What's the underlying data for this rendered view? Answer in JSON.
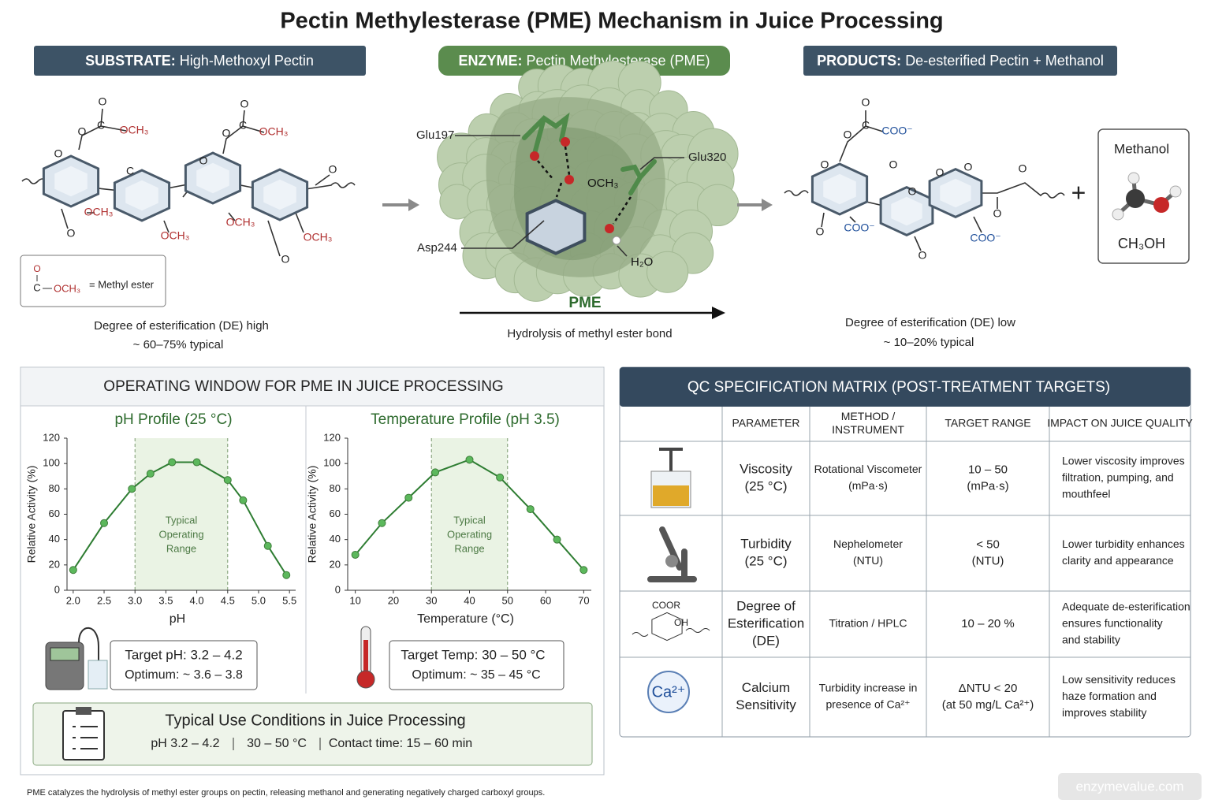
{
  "title": "Pectin Methylesterase (PME) Mechanism in Juice Processing",
  "substrate": {
    "header_label": "SUBSTRATE:",
    "header_text": "High-Methoxyl Pectin",
    "structure_labels": [
      "O",
      "C",
      "OCH₃",
      "O",
      "O",
      "C",
      "OCH₃",
      "O",
      "O",
      "OCH₃",
      "O",
      "OCH₃",
      "OCH₃",
      "OCH₃",
      "O",
      "O",
      "C",
      "O"
    ],
    "key_formula": [
      "O",
      "C",
      "OCH₃"
    ],
    "key_text": "= Methyl ester",
    "de_text": "Degree of esterification (DE) high",
    "de_range": "~ 60–75% typical"
  },
  "enzyme": {
    "header_label": "ENZYME:",
    "header_text": "Pectin Methylesterase (PME)",
    "residues": [
      "Glu197",
      "Glu320",
      "Asp244"
    ],
    "water": "H₂O",
    "leaving_group": "OCH₃",
    "arrow_label": "PME",
    "caption": "Hydrolysis of methyl ester bond"
  },
  "products": {
    "header_label": "PRODUCTS:",
    "header_text": "De-esterified Pectin +  Methanol",
    "structure_labels": [
      "O",
      "C",
      "COO⁻",
      "O",
      "O",
      "O",
      "O",
      "O",
      "O",
      "O",
      "COO⁻",
      "O",
      "COO⁻",
      "O",
      "O"
    ],
    "plus": "+",
    "methanol_title": "Methanol",
    "methanol_formula": "CH₃OH",
    "de_text": "Degree of esterification (DE) low",
    "de_range": "~ 10–20% typical"
  },
  "operating_window": {
    "title": "OPERATING WINDOW FOR PME IN JUICE PROCESSING",
    "ph_box": [
      "Target pH: 3.2 – 4.2",
      "Optimum: ~ 3.6 – 3.8"
    ],
    "temp_box": [
      "Target Temp: 30 – 50 °C",
      "Optimum: ~ 35 – 45 °C"
    ],
    "use_title": "Typical Use Conditions in Juice Processing",
    "use_conditions": [
      "pH 3.2 – 4.2",
      "30 – 50 °C",
      "Contact time: 15 – 60 min"
    ]
  },
  "chart_data": [
    {
      "type": "line",
      "title": "pH Profile (25 °C)",
      "xlabel": "pH",
      "ylabel": "Relative Activity (%)",
      "x": [
        2.0,
        2.5,
        2.95,
        3.25,
        3.6,
        4.0,
        4.5,
        4.75,
        5.15,
        5.45
      ],
      "values": [
        16,
        53,
        80,
        92,
        101,
        101,
        87,
        71,
        35,
        12
      ],
      "color": "#2e7d32",
      "marker_color": "#5cb85c",
      "xlim": [
        1.9,
        5.6
      ],
      "ylim": [
        0,
        120
      ],
      "xticks": [
        {
          "value": 2,
          "label": "2.0"
        },
        2.5,
        {
          "value": 3,
          "label": "3.0"
        },
        3.5,
        {
          "value": 4,
          "label": "4.0"
        },
        4.5,
        {
          "value": 5,
          "label": "5.0"
        },
        5.5
      ],
      "yticks": [
        0,
        20,
        40,
        60,
        80,
        100,
        120
      ],
      "shade": [
        3.0,
        4.5
      ],
      "annotation": [
        "Typical",
        "Operating",
        "Range"
      ]
    },
    {
      "type": "line",
      "title": "Temperature Profile (pH 3.5)",
      "xlabel": "Temperature (°C)",
      "ylabel": "Relative Activity (%)",
      "x": [
        10,
        17,
        24,
        31,
        40,
        48,
        56,
        63,
        70
      ],
      "values": [
        28,
        53,
        73,
        93,
        103,
        89,
        64,
        40,
        16
      ],
      "color": "#2e7d32",
      "marker_color": "#5cb85c",
      "xlim": [
        8,
        72
      ],
      "ylim": [
        0,
        120
      ],
      "xticks": [
        10,
        20,
        30,
        40,
        50,
        60,
        70
      ],
      "yticks": [
        0,
        20,
        40,
        60,
        80,
        100,
        120
      ],
      "shade": [
        30,
        50
      ],
      "annotation": [
        "Typical",
        "Operating",
        "Range"
      ]
    }
  ],
  "qc_matrix": {
    "title": "QC SPECIFICATION MATRIX (POST-TREATMENT TARGETS)",
    "headers": [
      [
        "PARAMETER"
      ],
      [
        "METHOD /",
        "INSTRUMENT"
      ],
      [
        "TARGET RANGE"
      ],
      [
        "IMPACT ON JUICE QUALITY"
      ]
    ],
    "rows": [
      {
        "cells": [
          [
            "Viscosity",
            "(25 °C)"
          ],
          [
            "Rotational Viscometer",
            "(mPa·s)"
          ],
          [
            "10 – 50",
            "(mPa·s)"
          ],
          [
            "Lower viscosity improves",
            "filtration, pumping, and",
            "mouthfeel"
          ]
        ]
      },
      {
        "cells": [
          [
            "Turbidity",
            "(25 °C)"
          ],
          [
            "Nephelometer",
            "(NTU)"
          ],
          [
            "< 50",
            "(NTU)"
          ],
          [
            "Lower turbidity enhances",
            "clarity and appearance"
          ]
        ]
      },
      {
        "icon_labels": [
          "COOR",
          "OH"
        ],
        "cells": [
          [
            "Degree of",
            "Esterification",
            "(DE)"
          ],
          [
            "Titration / HPLC"
          ],
          [
            "10 – 20 %"
          ],
          [
            "Adequate de-esterification",
            "ensures functionality",
            "and stability"
          ]
        ]
      },
      {
        "icon_labels": [
          "Ca²⁺"
        ],
        "cells": [
          [
            "Calcium",
            "Sensitivity"
          ],
          [
            "Turbidity increase in",
            "presence of Ca²⁺"
          ],
          [
            "ΔNTU < 20",
            "(at 50 mg/L Ca²⁺)"
          ],
          [
            "Low sensitivity reduces",
            "haze formation and",
            "improves stability"
          ]
        ]
      }
    ]
  },
  "footnote": "PME catalyzes the hydrolysis of methyl ester groups on pectin, releasing methanol and generating negatively charged carboxyl groups.",
  "watermark": "enzymevalue.com"
}
